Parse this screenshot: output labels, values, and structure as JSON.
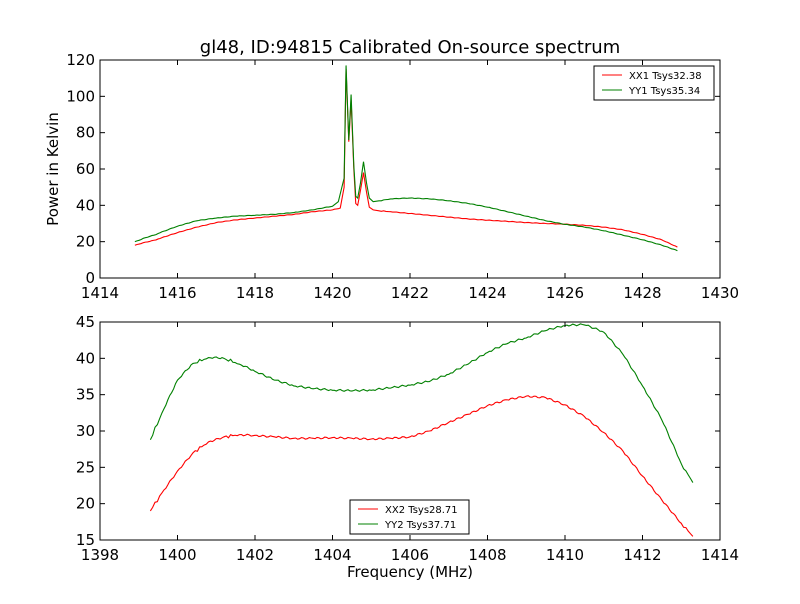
{
  "figure": {
    "title": "gl48, ID:94815 Calibrated On-source spectrum"
  },
  "chart_data": [
    {
      "type": "line",
      "title": "gl48, ID:94815 Calibrated On-source spectrum",
      "xlabel": "",
      "ylabel": "Power in Kelvin",
      "xlim": [
        1414,
        1430
      ],
      "ylim": [
        0,
        120
      ],
      "xticks": [
        1414,
        1416,
        1418,
        1420,
        1422,
        1424,
        1426,
        1428,
        1430
      ],
      "yticks": [
        0,
        20,
        40,
        60,
        80,
        100,
        120
      ],
      "xtick_labels": [
        "1414",
        "1416",
        "1418",
        "1420",
        "1422",
        "1424",
        "1426",
        "1428",
        "1430"
      ],
      "ytick_labels": [
        "0",
        "20",
        "40",
        "60",
        "80",
        "100",
        "120"
      ],
      "grid": false,
      "legend_position": "top-right",
      "series": [
        {
          "name": "XX1 Tsys32.38",
          "color": "#ff0000",
          "x": [
            1414.9,
            1415.5,
            1416.0,
            1416.5,
            1417.0,
            1417.5,
            1418.0,
            1418.5,
            1419.0,
            1419.5,
            1420.0,
            1420.2,
            1420.3,
            1420.35,
            1420.42,
            1420.48,
            1420.55,
            1420.6,
            1420.65,
            1420.72,
            1420.8,
            1420.88,
            1420.95,
            1421.05,
            1421.2,
            1421.5,
            1422.0,
            1422.5,
            1423.0,
            1423.5,
            1424.0,
            1424.5,
            1425.0,
            1425.5,
            1426.0,
            1426.5,
            1427.0,
            1427.5,
            1428.0,
            1428.5,
            1428.9
          ],
          "values": [
            18,
            21.5,
            25,
            28,
            30.5,
            32,
            33,
            34,
            35,
            36.5,
            37.5,
            38.5,
            50,
            115,
            75,
            98,
            60,
            41,
            40,
            48,
            58,
            47,
            39,
            37.5,
            37,
            36.5,
            35.5,
            34.5,
            33.5,
            32.5,
            31.8,
            31.2,
            30.5,
            30,
            29.6,
            29,
            28,
            26.5,
            24,
            21,
            17
          ]
        },
        {
          "name": "YY1 Tsys35.34",
          "color": "#008000",
          "x": [
            1414.9,
            1415.5,
            1416.0,
            1416.5,
            1417.0,
            1417.5,
            1418.0,
            1418.5,
            1419.0,
            1419.5,
            1420.0,
            1420.15,
            1420.3,
            1420.35,
            1420.42,
            1420.48,
            1420.55,
            1420.6,
            1420.65,
            1420.72,
            1420.8,
            1420.88,
            1420.95,
            1421.05,
            1421.2,
            1421.5,
            1422.0,
            1422.5,
            1423.0,
            1423.5,
            1424.0,
            1424.5,
            1425.0,
            1425.5,
            1426.0,
            1426.5,
            1427.0,
            1427.5,
            1428.0,
            1428.5,
            1428.9
          ],
          "values": [
            20,
            24.5,
            28.5,
            31.5,
            33,
            34,
            34.5,
            35,
            36,
            37.5,
            39.5,
            42,
            55,
            117,
            76,
            101,
            62,
            45,
            44,
            52,
            64,
            52,
            44,
            42,
            42.5,
            43.5,
            44,
            43.5,
            42.5,
            41,
            39,
            36.5,
            34,
            31.5,
            29.5,
            28,
            26,
            23.5,
            21,
            18,
            15
          ]
        }
      ]
    },
    {
      "type": "line",
      "title": "",
      "xlabel": "Frequency (MHz)",
      "ylabel": "",
      "xlim": [
        1398,
        1414
      ],
      "ylim": [
        15,
        45
      ],
      "xticks": [
        1398,
        1400,
        1402,
        1404,
        1406,
        1408,
        1410,
        1412,
        1414
      ],
      "yticks": [
        15,
        20,
        25,
        30,
        35,
        40,
        45
      ],
      "xtick_labels": [
        "1398",
        "1400",
        "1402",
        "1404",
        "1406",
        "1408",
        "1410",
        "1412",
        "1414"
      ],
      "ytick_labels": [
        "15",
        "20",
        "25",
        "30",
        "35",
        "40",
        "45"
      ],
      "grid": false,
      "legend_position": "bottom-center",
      "series": [
        {
          "name": "XX2 Tsys28.71",
          "color": "#ff0000",
          "x": [
            1399.3,
            1399.6,
            1400.0,
            1400.4,
            1400.8,
            1401.2,
            1401.6,
            1402.0,
            1402.5,
            1403.0,
            1403.5,
            1404.0,
            1404.5,
            1405.0,
            1405.5,
            1406.0,
            1406.5,
            1407.0,
            1407.5,
            1408.0,
            1408.5,
            1409.0,
            1409.5,
            1410.0,
            1410.5,
            1411.0,
            1411.5,
            1412.0,
            1412.5,
            1413.0,
            1413.3
          ],
          "values": [
            19,
            21.5,
            24.5,
            27,
            28.5,
            29.2,
            29.5,
            29.4,
            29.2,
            29.0,
            29.0,
            29.1,
            29.0,
            28.9,
            29.0,
            29.2,
            30.0,
            31.2,
            32.3,
            33.5,
            34.3,
            34.8,
            34.6,
            33.6,
            32.0,
            29.8,
            27.2,
            23.8,
            20.5,
            17.3,
            15.5
          ]
        },
        {
          "name": "YY2 Tsys37.71",
          "color": "#008000",
          "x": [
            1399.3,
            1399.6,
            1400.0,
            1400.4,
            1400.8,
            1401.2,
            1401.6,
            1402.0,
            1402.5,
            1403.0,
            1403.5,
            1404.0,
            1404.5,
            1405.0,
            1405.5,
            1406.0,
            1406.5,
            1407.0,
            1407.5,
            1408.0,
            1408.5,
            1409.0,
            1409.5,
            1410.0,
            1410.5,
            1411.0,
            1411.5,
            1412.0,
            1412.5,
            1413.0,
            1413.3
          ],
          "values": [
            28.8,
            32.5,
            37,
            39.3,
            40.1,
            40.0,
            39.2,
            38.2,
            37,
            36.2,
            35.8,
            35.6,
            35.5,
            35.6,
            35.9,
            36.3,
            36.8,
            37.8,
            39.2,
            40.8,
            42.0,
            42.8,
            43.8,
            44.5,
            44.6,
            43.6,
            40.5,
            36.2,
            31.5,
            25.5,
            22.9
          ]
        }
      ]
    }
  ]
}
